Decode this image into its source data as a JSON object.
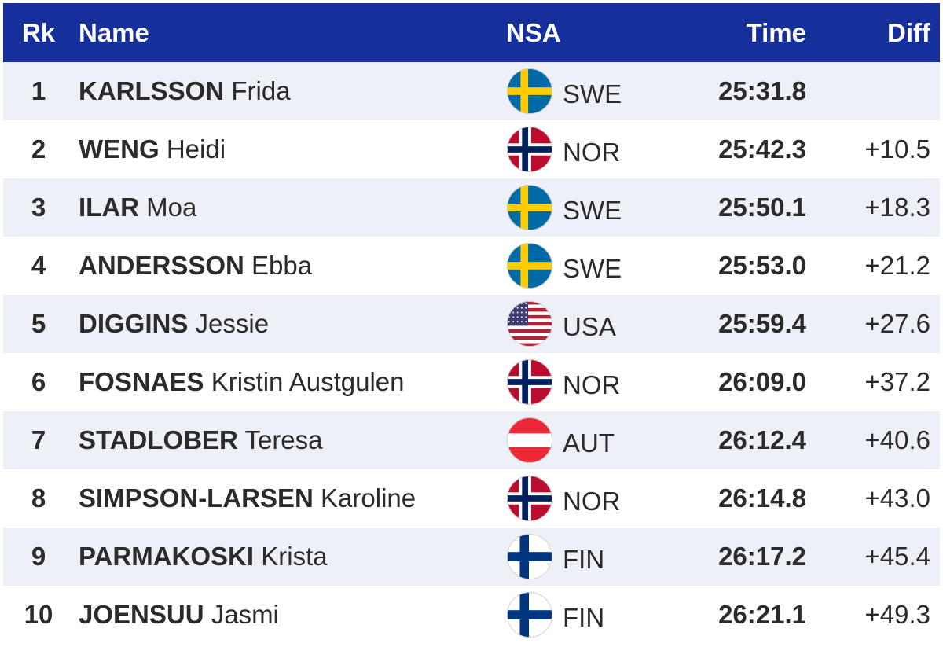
{
  "columns": {
    "rank": "Rk",
    "name": "Name",
    "nsa": "NSA",
    "time": "Time",
    "diff": "Diff"
  },
  "colors": {
    "header_bg": "#16309b",
    "row_alt_bg": "#eef0f7"
  },
  "rows": [
    {
      "rank": "1",
      "surname": "KARLSSON",
      "given": "Frida",
      "nsa": "SWE",
      "flag": "sweden-flag-icon",
      "time": "25:31.8",
      "diff": ""
    },
    {
      "rank": "2",
      "surname": "WENG",
      "given": "Heidi",
      "nsa": "NOR",
      "flag": "norway-flag-icon",
      "time": "25:42.3",
      "diff": "+10.5"
    },
    {
      "rank": "3",
      "surname": "ILAR",
      "given": "Moa",
      "nsa": "SWE",
      "flag": "sweden-flag-icon",
      "time": "25:50.1",
      "diff": "+18.3"
    },
    {
      "rank": "4",
      "surname": "ANDERSSON",
      "given": "Ebba",
      "nsa": "SWE",
      "flag": "sweden-flag-icon",
      "time": "25:53.0",
      "diff": "+21.2"
    },
    {
      "rank": "5",
      "surname": "DIGGINS",
      "given": "Jessie",
      "nsa": "USA",
      "flag": "usa-flag-icon",
      "time": "25:59.4",
      "diff": "+27.6"
    },
    {
      "rank": "6",
      "surname": "FOSNAES",
      "given": "Kristin Austgulen",
      "nsa": "NOR",
      "flag": "norway-flag-icon",
      "time": "26:09.0",
      "diff": "+37.2"
    },
    {
      "rank": "7",
      "surname": "STADLOBER",
      "given": "Teresa",
      "nsa": "AUT",
      "flag": "austria-flag-icon",
      "time": "26:12.4",
      "diff": "+40.6"
    },
    {
      "rank": "8",
      "surname": "SIMPSON-LARSEN",
      "given": "Karoline",
      "nsa": "NOR",
      "flag": "norway-flag-icon",
      "time": "26:14.8",
      "diff": "+43.0"
    },
    {
      "rank": "9",
      "surname": "PARMAKOSKI",
      "given": "Krista",
      "nsa": "FIN",
      "flag": "finland-flag-icon",
      "time": "26:17.2",
      "diff": "+45.4"
    },
    {
      "rank": "10",
      "surname": "JOENSUU",
      "given": "Jasmi",
      "nsa": "FIN",
      "flag": "finland-flag-icon",
      "time": "26:21.1",
      "diff": "+49.3"
    }
  ]
}
